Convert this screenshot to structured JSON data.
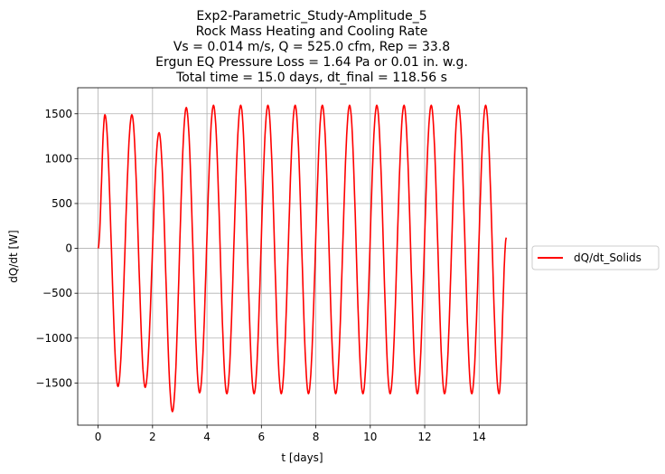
{
  "chart_data": {
    "type": "line",
    "title": [
      "Exp2-Parametric_Study-Amplitude_5",
      "Rock Mass Heating and Cooling Rate",
      "Vs = 0.014 m/s, Q = 525.0 cfm, Rep = 33.8",
      "Ergun EQ Pressure Loss = 1.64 Pa or 0.01 in. w.g.",
      "Total time = 15.0 days, dt_final = 118.56 s"
    ],
    "xlabel": "t [days]",
    "ylabel": "dQ/dt [W]",
    "xlim": [
      -0.75,
      15.75
    ],
    "ylim": [
      -1970,
      1790
    ],
    "xticks": [
      0,
      2,
      4,
      6,
      8,
      10,
      12,
      14
    ],
    "yticks": [
      -1500,
      -1000,
      -500,
      0,
      500,
      1000,
      1500
    ],
    "xtick_labels": [
      "0",
      "2",
      "4",
      "6",
      "8",
      "10",
      "12",
      "14"
    ],
    "ytick_labels": [
      "−1500",
      "−1000",
      "−500",
      "0",
      "500",
      "1000",
      "1500"
    ],
    "grid": true,
    "legend_position": "outside-right",
    "series": [
      {
        "name": "dQ/dt_Solids",
        "color": "#ff0000",
        "x": [
          0,
          0.25,
          0.73,
          1.24,
          1.73,
          2.24,
          2.73,
          3.24,
          3.73,
          4.24,
          4.73,
          5.24,
          5.73,
          6.24,
          6.73,
          7.24,
          7.73,
          8.24,
          8.73,
          9.24,
          9.73,
          10.24,
          10.73,
          11.24,
          11.73,
          12.24,
          12.73,
          13.24,
          13.73,
          14.24,
          14.73,
          15.0
        ],
        "y": [
          0,
          1490,
          -1540,
          1490,
          -1550,
          1290,
          -1820,
          1570,
          -1610,
          1595,
          -1620,
          1595,
          -1620,
          1595,
          -1620,
          1595,
          -1620,
          1595,
          -1620,
          1595,
          -1620,
          1595,
          -1620,
          1595,
          -1620,
          1595,
          -1620,
          1595,
          -1620,
          1595,
          -1620,
          120
        ]
      }
    ]
  }
}
